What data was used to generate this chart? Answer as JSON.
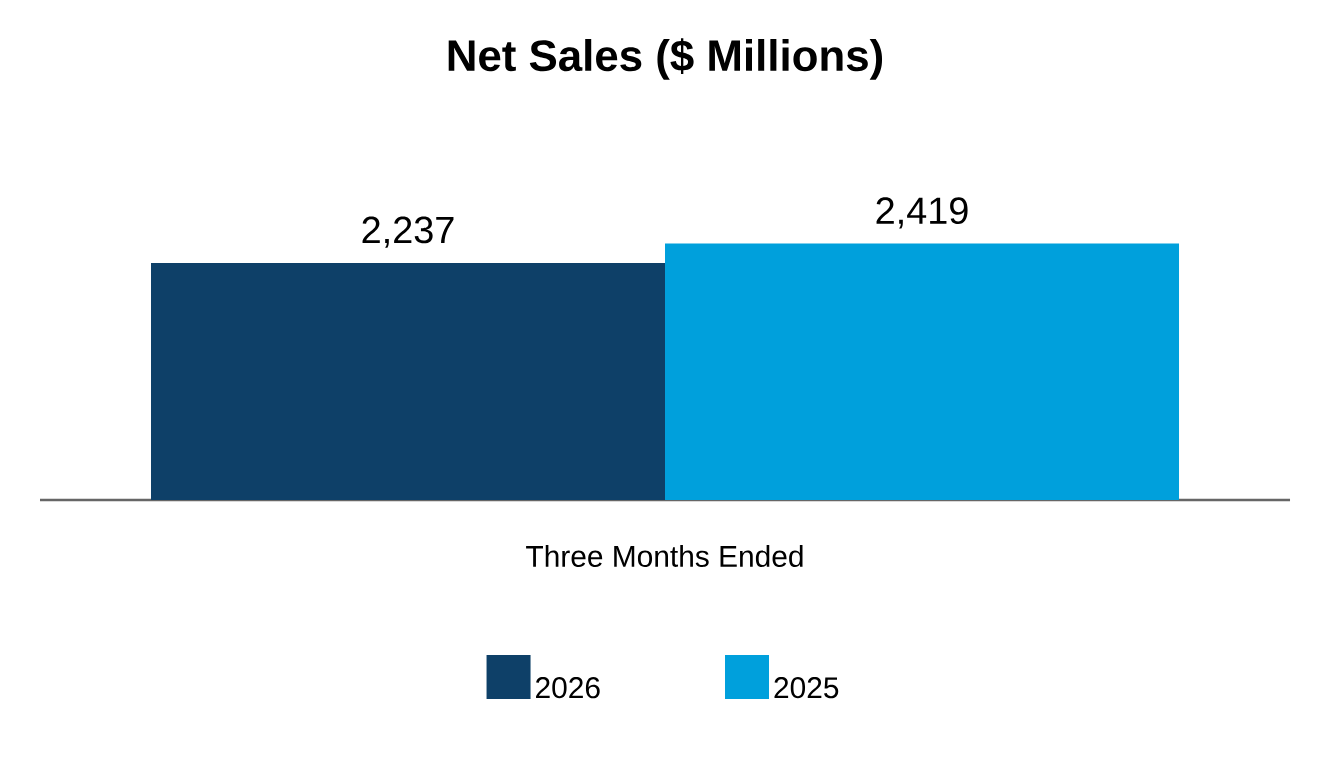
{
  "chart_data": {
    "type": "bar",
    "title": "Net Sales ($ Millions)",
    "xlabel": "Three Months Ended",
    "categories": [
      null,
      null
    ],
    "series": [
      {
        "name": "2026",
        "color": "#0e4068",
        "values": [
          2237,
          null
        ],
        "value_labels": [
          "2,237",
          null
        ]
      },
      {
        "name": "2025",
        "color": "#00a0dc",
        "values": [
          null,
          2419
        ],
        "value_labels": [
          null,
          "2,419"
        ]
      }
    ],
    "stacked": true,
    "legend": "bottom"
  }
}
